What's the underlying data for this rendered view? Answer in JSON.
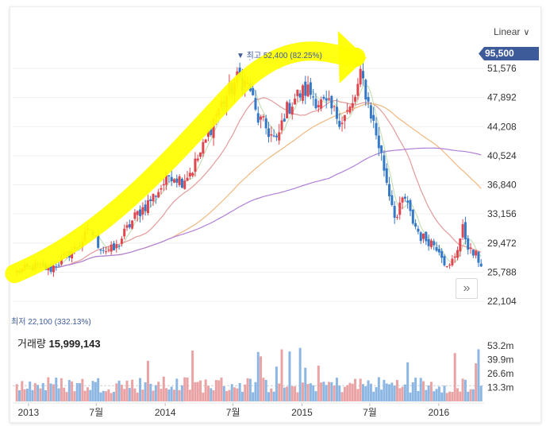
{
  "chart_data": {
    "type": "candlestick",
    "y_axis_ticks": [
      "51,576",
      "47,892",
      "44,208",
      "40,524",
      "36,840",
      "33,156",
      "29,472",
      "25,788",
      "22,104"
    ],
    "y_axis_tick_values": [
      51576,
      47892,
      44208,
      40524,
      36840,
      33156,
      29472,
      25788,
      22104
    ],
    "y_range": [
      20800,
      54700
    ],
    "x_axis_ticks": [
      "2013",
      "7월",
      "2014",
      "7월",
      "2015",
      "7월",
      "2016"
    ],
    "x_axis_tick_dates": [
      "2013-01-01",
      "2013-07-01",
      "2014-01-01",
      "2014-07-01",
      "2015-01-01",
      "2015-07-01",
      "2016-01-01"
    ],
    "x_range": [
      "2012-11-20",
      "2016-05-01"
    ],
    "current_price": "95,500",
    "high_annotation": {
      "prefix": "▼ 최고",
      "value": "52,400",
      "pct": "(82.25%)",
      "price": 52400,
      "date": "2014-08-15"
    },
    "low_annotation": {
      "prefix": "최저",
      "value": "22,100",
      "pct": "(332.13%)",
      "price": 22100
    },
    "close_series": [
      {
        "date": "2012-12-01",
        "close": 25800
      },
      {
        "date": "2013-01-15",
        "close": 26500
      },
      {
        "date": "2013-03-01",
        "close": 26200
      },
      {
        "date": "2013-04-15",
        "close": 28000
      },
      {
        "date": "2013-05-15",
        "close": 29200
      },
      {
        "date": "2013-06-15",
        "close": 31200
      },
      {
        "date": "2013-07-05",
        "close": 29400
      },
      {
        "date": "2013-07-25",
        "close": 28600
      },
      {
        "date": "2013-08-20",
        "close": 28600
      },
      {
        "date": "2013-09-15",
        "close": 30800
      },
      {
        "date": "2013-10-15",
        "close": 33000
      },
      {
        "date": "2013-11-15",
        "close": 34500
      },
      {
        "date": "2013-12-15",
        "close": 36200
      },
      {
        "date": "2014-01-15",
        "close": 38300
      },
      {
        "date": "2014-02-15",
        "close": 37400
      },
      {
        "date": "2014-03-15",
        "close": 38900
      },
      {
        "date": "2014-04-15",
        "close": 41800
      },
      {
        "date": "2014-05-15",
        "close": 45800
      },
      {
        "date": "2014-06-15",
        "close": 48200
      },
      {
        "date": "2014-07-15",
        "close": 50400
      },
      {
        "date": "2014-08-15",
        "close": 49200
      },
      {
        "date": "2014-09-01",
        "close": 45500
      },
      {
        "date": "2014-10-01",
        "close": 43800
      },
      {
        "date": "2014-10-25",
        "close": 42100
      },
      {
        "date": "2014-11-15",
        "close": 45800
      },
      {
        "date": "2014-12-15",
        "close": 48000
      },
      {
        "date": "2015-01-15",
        "close": 48900
      },
      {
        "date": "2015-02-15",
        "close": 47300
      },
      {
        "date": "2015-03-15",
        "close": 46600
      },
      {
        "date": "2015-04-15",
        "close": 45100
      },
      {
        "date": "2015-05-15",
        "close": 46600
      },
      {
        "date": "2015-06-08",
        "close": 50800
      },
      {
        "date": "2015-06-25",
        "close": 47600
      },
      {
        "date": "2015-07-15",
        "close": 43800
      },
      {
        "date": "2015-08-01",
        "close": 40500
      },
      {
        "date": "2015-08-20",
        "close": 36200
      },
      {
        "date": "2015-09-10",
        "close": 32400
      },
      {
        "date": "2015-09-30",
        "close": 35500
      },
      {
        "date": "2015-10-20",
        "close": 32600
      },
      {
        "date": "2015-11-15",
        "close": 30200
      },
      {
        "date": "2015-12-10",
        "close": 29700
      },
      {
        "date": "2016-01-05",
        "close": 28700
      },
      {
        "date": "2016-01-25",
        "close": 25900
      },
      {
        "date": "2016-02-15",
        "close": 28200
      },
      {
        "date": "2016-03-05",
        "close": 31200
      },
      {
        "date": "2016-03-25",
        "close": 28400
      },
      {
        "date": "2016-04-10",
        "close": 27800
      },
      {
        "date": "2016-04-25",
        "close": 26700
      }
    ],
    "moving_averages": [
      {
        "color": "#c6e0b4",
        "period": 5
      },
      {
        "color": "#e39a9a",
        "period": 20
      },
      {
        "color": "#f1b87f",
        "period": 60
      },
      {
        "color": "#b07fd8",
        "period": 120
      }
    ],
    "volume": {
      "label": "거래량",
      "value": "15,999,143",
      "y_axis_ticks": [
        "53.2m",
        "39.9m",
        "26.6m",
        "13.3m"
      ],
      "y_axis_tick_values": [
        53.2,
        39.9,
        26.6,
        13.3
      ],
      "y_range": [
        0,
        66
      ],
      "baseline_m": 15
    },
    "scale_mode": "Linear",
    "grid": true,
    "up_color": "#e0464e",
    "down_color": "#3478c6",
    "annotation_color": "#ffff00"
  }
}
